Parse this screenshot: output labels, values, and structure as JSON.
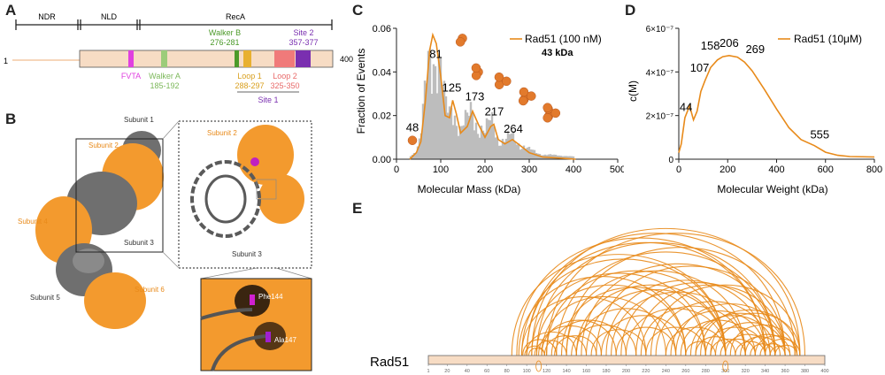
{
  "panels": {
    "a": "A",
    "b": "B",
    "c": "C",
    "d": "D",
    "e": "E"
  },
  "panel_a": {
    "domain_labels": {
      "ndr": "NDR",
      "nld": "NLD",
      "reca": "RecA"
    },
    "start": "1",
    "end": "400",
    "walker_b": {
      "name": "Walker B",
      "range": "276-281"
    },
    "site2": {
      "name": "Site 2",
      "range": "357-377"
    },
    "fvta": "FVTA",
    "walker_a": {
      "name": "Walker A",
      "range": "185-192"
    },
    "loop1": {
      "name": "Loop 1",
      "range": "288-297"
    },
    "loop2": {
      "name": "Loop 2",
      "range": "325-350"
    },
    "site1": "Site 1",
    "colors": {
      "bar": "#f7dcc4",
      "fvta": "#e040e0",
      "walker_a": "#9ccc7a",
      "walker_b": "#4c9a2a",
      "loop1": "#e8b030",
      "loop2": "#f07a7a",
      "site2": "#7a2fb0"
    }
  },
  "panel_b": {
    "subunits": {
      "s1": "Subunit 1",
      "s2": "Subunit 2",
      "s3": "Subunit 3",
      "s4": "Subunit 4",
      "s5": "Subunit 5",
      "s6": "Subunit 6"
    },
    "zoom_subunit2": "Subunit 2",
    "zoom_subunit3": "Subunit 3",
    "residue1": "Phe144",
    "residue2": "Ala147",
    "colors": {
      "orange": "#f39a2e",
      "gray": "#6f6f6f"
    }
  },
  "chart_data": [
    {
      "type": "bar",
      "panel": "C",
      "title": "",
      "xlabel": "Molecular Mass (kDa)",
      "ylabel": "Fraction of Events",
      "xlim": [
        0,
        500
      ],
      "ylim": [
        0,
        0.06
      ],
      "xticks": [
        "0",
        "100",
        "200",
        "300",
        "400",
        "500"
      ],
      "yticks": [
        "0.00",
        "0.02",
        "0.04",
        "0.06"
      ],
      "legend": "Rad51 (100 nM)",
      "legend_sub": "43 kDa",
      "fit_line": [
        [
          30,
          0.0
        ],
        [
          45,
          0.003
        ],
        [
          55,
          0.008
        ],
        [
          65,
          0.026
        ],
        [
          75,
          0.05
        ],
        [
          82,
          0.057
        ],
        [
          90,
          0.053
        ],
        [
          100,
          0.038
        ],
        [
          110,
          0.02
        ],
        [
          120,
          0.019
        ],
        [
          127,
          0.027
        ],
        [
          135,
          0.021
        ],
        [
          145,
          0.012
        ],
        [
          160,
          0.015
        ],
        [
          172,
          0.022
        ],
        [
          185,
          0.016
        ],
        [
          200,
          0.01
        ],
        [
          213,
          0.015
        ],
        [
          220,
          0.016
        ],
        [
          230,
          0.009
        ],
        [
          245,
          0.007
        ],
        [
          262,
          0.009
        ],
        [
          275,
          0.007
        ],
        [
          300,
          0.003
        ],
        [
          330,
          0.001
        ],
        [
          370,
          0.0005
        ],
        [
          405,
          0.0
        ]
      ],
      "peak_labels": [
        {
          "x": 48,
          "y": 0.007,
          "label": "48"
        },
        {
          "x": 81,
          "y": 0.057,
          "label": "81"
        },
        {
          "x": 125,
          "y": 0.027,
          "label": "125"
        },
        {
          "x": 173,
          "y": 0.022,
          "label": "173"
        },
        {
          "x": 217,
          "y": 0.016,
          "label": "217"
        },
        {
          "x": 264,
          "y": 0.009,
          "label": "264"
        }
      ],
      "colors": {
        "line": "#e88a1a",
        "bars": "#bdbdbd",
        "spheres": "#e27a2c"
      }
    },
    {
      "type": "line",
      "panel": "D",
      "title": "",
      "xlabel": "Molecular Weight (kDa)",
      "ylabel": "c(M)",
      "xlim": [
        0,
        800
      ],
      "ylim": [
        0,
        6e-07
      ],
      "xticks": [
        "0",
        "200",
        "400",
        "600",
        "800"
      ],
      "yticks": [
        "0",
        "2×10⁻⁷",
        "4×10⁻⁷",
        "6×10⁻⁷"
      ],
      "legend": "Rad51 (10μM)",
      "series": [
        {
          "name": "Rad51 (10μM)",
          "points": [
            [
              0,
              3e-08
            ],
            [
              10,
              7e-08
            ],
            [
              25,
              1.9e-07
            ],
            [
              44,
              2.45e-07
            ],
            [
              60,
              1.8e-07
            ],
            [
              75,
              2.2e-07
            ],
            [
              90,
              3.1e-07
            ],
            [
              107,
              3.6e-07
            ],
            [
              130,
              4.2e-07
            ],
            [
              158,
              4.55e-07
            ],
            [
              180,
              4.7e-07
            ],
            [
              206,
              4.75e-07
            ],
            [
              240,
              4.68e-07
            ],
            [
              269,
              4.45e-07
            ],
            [
              300,
              4.05e-07
            ],
            [
              350,
              3.2e-07
            ],
            [
              400,
              2.3e-07
            ],
            [
              450,
              1.45e-07
            ],
            [
              500,
              9e-08
            ],
            [
              555,
              6.2e-08
            ],
            [
              600,
              3.2e-08
            ],
            [
              650,
              1.8e-08
            ],
            [
              700,
              1.2e-08
            ],
            [
              800,
              1e-08
            ]
          ]
        }
      ],
      "peak_labels": [
        {
          "x": 44,
          "y": 2.45e-07,
          "label": "44"
        },
        {
          "x": 107,
          "y": 3.6e-07,
          "label": "107"
        },
        {
          "x": 158,
          "y": 4.55e-07,
          "label": "158"
        },
        {
          "x": 206,
          "y": 4.75e-07,
          "label": "206"
        },
        {
          "x": 269,
          "y": 4.45e-07,
          "label": "269"
        },
        {
          "x": 555,
          "y": 6.2e-08,
          "label": "555"
        }
      ],
      "colors": {
        "line": "#e88a1a"
      }
    },
    {
      "type": "arc",
      "panel": "E",
      "title": "",
      "label": "Rad51",
      "xlim": [
        1,
        400
      ],
      "ticks": [
        "1",
        "20",
        "40",
        "60",
        "80",
        "100",
        "120",
        "140",
        "160",
        "180",
        "200",
        "220",
        "240",
        "260",
        "280",
        "300",
        "320",
        "340",
        "360",
        "380",
        "400"
      ],
      "links": [
        [
          95,
          220
        ],
        [
          95,
          300
        ],
        [
          100,
          340
        ],
        [
          100,
          360
        ],
        [
          105,
          280
        ],
        [
          105,
          375
        ],
        [
          110,
          260
        ],
        [
          110,
          350
        ],
        [
          115,
          240
        ],
        [
          118,
          160
        ],
        [
          120,
          300
        ],
        [
          120,
          380
        ],
        [
          125,
          200
        ],
        [
          130,
          350
        ],
        [
          135,
          280
        ],
        [
          140,
          320
        ],
        [
          140,
          370
        ],
        [
          150,
          250
        ],
        [
          155,
          350
        ],
        [
          160,
          300
        ],
        [
          165,
          220
        ],
        [
          170,
          360
        ],
        [
          180,
          340
        ],
        [
          190,
          250
        ],
        [
          200,
          300
        ],
        [
          210,
          360
        ],
        [
          220,
          280
        ],
        [
          230,
          345
        ],
        [
          240,
          300
        ],
        [
          250,
          360
        ],
        [
          255,
          330
        ],
        [
          260,
          290
        ],
        [
          265,
          350
        ],
        [
          270,
          310
        ],
        [
          275,
          372
        ],
        [
          280,
          340
        ],
        [
          285,
          320
        ],
        [
          290,
          360
        ],
        [
          295,
          330
        ],
        [
          300,
          345
        ],
        [
          305,
          370
        ],
        [
          310,
          340
        ],
        [
          315,
          355
        ],
        [
          320,
          365
        ],
        [
          325,
          350
        ],
        [
          330,
          372
        ],
        [
          335,
          360
        ],
        [
          340,
          375
        ],
        [
          345,
          365
        ],
        [
          350,
          372
        ],
        [
          96,
          130
        ],
        [
          100,
          150
        ],
        [
          102,
          118
        ],
        [
          108,
          140
        ],
        [
          112,
          175
        ],
        [
          85,
          300
        ],
        [
          90,
          340
        ],
        [
          92,
          260
        ],
        [
          98,
          118
        ],
        [
          115,
          190
        ],
        [
          128,
          170
        ],
        [
          145,
          210
        ],
        [
          150,
          300
        ],
        [
          175,
          260
        ],
        [
          185,
          320
        ],
        [
          195,
          350
        ],
        [
          215,
          320
        ],
        [
          225,
          375
        ],
        [
          245,
          340
        ],
        [
          270,
          360
        ],
        [
          285,
          375
        ]
      ],
      "colors": {
        "arc": "#e88a1a",
        "bar": "#f7dcc4"
      }
    }
  ]
}
